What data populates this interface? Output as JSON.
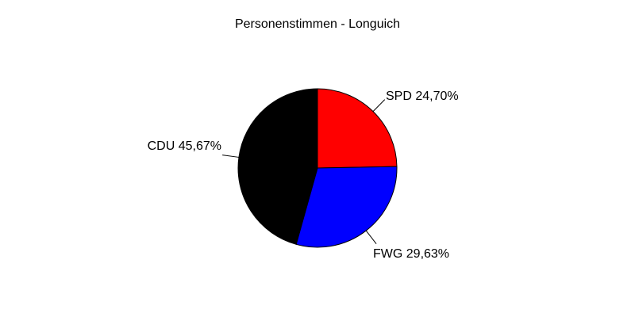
{
  "page": {
    "background": "#ffffff"
  },
  "chart_data": {
    "type": "pie",
    "title": "Personenstimmen - Longuich",
    "start_angle_deg": 90,
    "direction": "clockwise",
    "total_pct": 100,
    "outline_color": "#000000",
    "label_color": "#000000",
    "background_color": "#ffffff",
    "slices": [
      {
        "party": "SPD",
        "value_pct": 24.7,
        "display": "SPD 24,70%",
        "color": "#ff0000"
      },
      {
        "party": "FWG",
        "value_pct": 29.63,
        "display": "FWG 29,63%",
        "color": "#0000ff"
      },
      {
        "party": "CDU",
        "value_pct": 45.67,
        "display": "CDU 45,67%",
        "color": "#000000"
      }
    ],
    "legend": "none",
    "labels_placement": "outside-with-leader-lines"
  }
}
